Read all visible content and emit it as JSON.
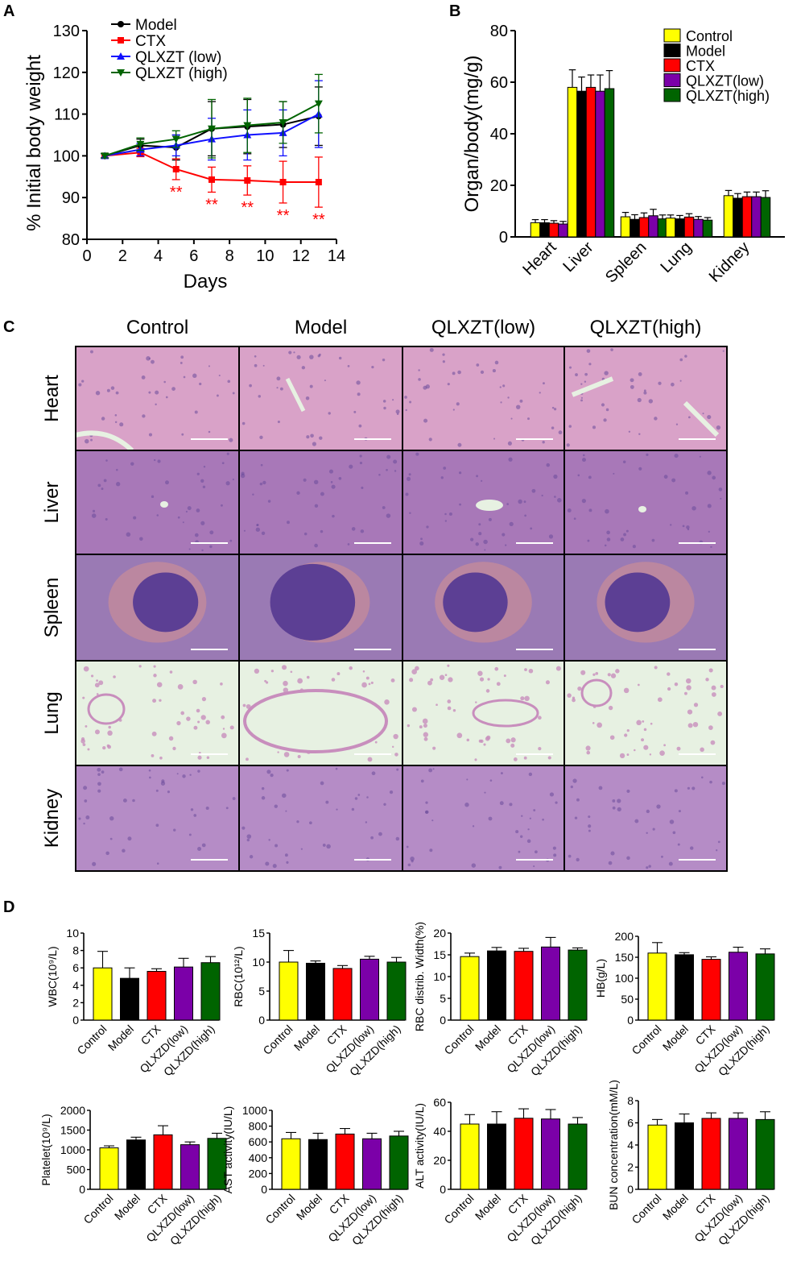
{
  "panel_labels": {
    "A": "A",
    "B": "B",
    "C": "C",
    "D": "D"
  },
  "colors": {
    "Control": "#FFFF00",
    "Model": "#000000",
    "CTX": "#FF0000",
    "low": "#7B00A8",
    "high": "#006400",
    "blue": "#1010FF",
    "tissue": "#B07AB8",
    "lumen": "#E8F2E0"
  },
  "chart_data": [
    {
      "id": "A",
      "type": "line",
      "xlabel": "Days",
      "ylabel": "% Initial body weight",
      "xlim": [
        0,
        14
      ],
      "ylim": [
        80,
        130
      ],
      "xticks": [
        "0",
        "2",
        "4",
        "6",
        "8",
        "10",
        "12",
        "14"
      ],
      "yticks": [
        "80",
        "90",
        "100",
        "110",
        "120",
        "130"
      ],
      "grid": false,
      "legend": "top-left",
      "series": [
        {
          "name": "Model",
          "color": "#000000",
          "marker": "circle",
          "x": [
            1,
            3,
            5,
            7,
            9,
            11,
            13
          ],
          "y": [
            100,
            102.5,
            102,
            106.5,
            107,
            107.5,
            109.5
          ],
          "err": [
            0.5,
            1.5,
            3,
            6.5,
            6.5,
            5.5,
            7
          ]
        },
        {
          "name": "CTX",
          "color": "#FF0000",
          "marker": "square",
          "x": [
            1,
            3,
            5,
            7,
            9,
            11,
            13
          ],
          "y": [
            100,
            100.8,
            96.8,
            94.3,
            94.1,
            93.7,
            93.7
          ],
          "err": [
            0.5,
            1,
            2.5,
            3,
            3.5,
            5,
            6
          ]
        },
        {
          "name": "QLXZT (low)",
          "color": "#1010FF",
          "marker": "triangle-up",
          "x": [
            1,
            3,
            5,
            7,
            9,
            11,
            13
          ],
          "y": [
            100,
            101.5,
            102.5,
            104,
            105,
            105.5,
            110
          ],
          "err": [
            0.5,
            1.5,
            2.5,
            5,
            6,
            5.5,
            8
          ]
        },
        {
          "name": "QLXZT (high)",
          "color": "#006400",
          "marker": "triangle-down",
          "x": [
            1,
            3,
            5,
            7,
            9,
            11,
            13
          ],
          "y": [
            100,
            102.8,
            104,
            106.5,
            107.3,
            108,
            112.5
          ],
          "err": [
            0.5,
            1.5,
            2,
            7,
            6.5,
            5,
            7
          ]
        }
      ],
      "annotations": [
        {
          "x": 5,
          "text": "**"
        },
        {
          "x": 7,
          "text": "**"
        },
        {
          "x": 9,
          "text": "**"
        },
        {
          "x": 11,
          "text": "**"
        },
        {
          "x": 13,
          "text": "**"
        }
      ]
    },
    {
      "id": "B",
      "type": "bar",
      "ylabel": "Organ/body(mg/g)",
      "ylim": [
        0,
        80
      ],
      "yticks": [
        "0",
        "20",
        "40",
        "60",
        "80"
      ],
      "categories": [
        "Heart",
        "Liver",
        "Spleen",
        "Lung",
        "Kidney"
      ],
      "legend": "top-right",
      "series": [
        {
          "name": "Control",
          "color": "#FFFF00",
          "values": [
            5.5,
            58,
            7.8,
            7.3,
            16
          ],
          "err": [
            1.2,
            6.8,
            1.7,
            1.2,
            2
          ]
        },
        {
          "name": "Model",
          "color": "#000000",
          "values": [
            5.5,
            56.5,
            6.8,
            7,
            15
          ],
          "err": [
            1.2,
            5.5,
            1.8,
            1.3,
            1.8
          ]
        },
        {
          "name": "CTX",
          "color": "#FF0000",
          "values": [
            5.3,
            58,
            7.5,
            7.7,
            15.6
          ],
          "err": [
            1,
            4.8,
            1.8,
            1.3,
            1.8
          ]
        },
        {
          "name": "QLXZT(low)",
          "color": "#7B00A8",
          "values": [
            5,
            56.5,
            8.2,
            6.8,
            15.6
          ],
          "err": [
            1,
            6.3,
            2.5,
            1.1,
            1.8
          ]
        },
        {
          "name": "QLXZT(high)",
          "color": "#006400",
          "values": [
            5.5,
            57.5,
            7,
            6.5,
            15.3
          ],
          "err": [
            1.5,
            7,
            1.5,
            1,
            2.6
          ]
        }
      ]
    },
    {
      "id": "D1",
      "type": "bar",
      "ylabel": "WBC(10⁹/L)",
      "ylim": [
        0,
        10
      ],
      "yticks": [
        "0",
        "2",
        "4",
        "6",
        "8",
        "10"
      ],
      "categories": [
        "Control",
        "Model",
        "CTX",
        "QLXZD(low)",
        "QLXZD(high)"
      ],
      "values": [
        6,
        4.8,
        5.6,
        6.1,
        6.6
      ],
      "err": [
        1.9,
        1.2,
        0.3,
        1,
        0.7
      ]
    },
    {
      "id": "D2",
      "type": "bar",
      "ylabel": "RBC(10¹²/L)",
      "ylim": [
        0,
        15
      ],
      "yticks": [
        "0",
        "5",
        "10",
        "15"
      ],
      "categories": [
        "Control",
        "Model",
        "CTX",
        "QLXZD(low)",
        "QLXZD(high)"
      ],
      "values": [
        10,
        9.8,
        8.9,
        10.5,
        10
      ],
      "err": [
        2,
        0.4,
        0.5,
        0.5,
        0.8
      ]
    },
    {
      "id": "D3",
      "type": "bar",
      "ylabel": "RBC distrib. Width(%)",
      "ylim": [
        0,
        20
      ],
      "yticks": [
        "0",
        "5",
        "10",
        "15",
        "20"
      ],
      "categories": [
        "Control",
        "Model",
        "CTX",
        "QLXZD(low)",
        "QLXZD(high)"
      ],
      "values": [
        14.6,
        15.9,
        15.8,
        16.8,
        16.1
      ],
      "err": [
        0.8,
        0.8,
        0.7,
        2.2,
        0.5
      ]
    },
    {
      "id": "D4",
      "type": "bar",
      "ylabel": "HB(g/L)",
      "ylim": [
        0,
        200
      ],
      "yticks": [
        "0",
        "50",
        "100",
        "150",
        "200"
      ],
      "categories": [
        "Control",
        "Model",
        "CTX",
        "QLXZD(low)",
        "QLXZD(high)"
      ],
      "values": [
        160,
        156,
        145,
        162,
        158
      ],
      "err": [
        25,
        5,
        6,
        12,
        12
      ]
    },
    {
      "id": "D5",
      "type": "bar",
      "ylabel": "Platelet(10⁹/L)",
      "ylim": [
        0,
        2000
      ],
      "yticks": [
        "0",
        "500",
        "1000",
        "1500",
        "2000"
      ],
      "categories": [
        "Control",
        "Model",
        "CTX",
        "QLXZD(low)",
        "QLXZD(high)"
      ],
      "values": [
        1050,
        1250,
        1380,
        1130,
        1290
      ],
      "err": [
        50,
        70,
        230,
        70,
        130
      ]
    },
    {
      "id": "D6",
      "type": "bar",
      "ylabel": "AST activity(IU/L)",
      "ylim": [
        0,
        1000
      ],
      "yticks": [
        "0",
        "200",
        "400",
        "600",
        "800",
        "1000"
      ],
      "categories": [
        "Control",
        "Model",
        "CTX",
        "QLXZD(low)",
        "QLXZD(high)"
      ],
      "values": [
        640,
        630,
        700,
        640,
        675
      ],
      "err": [
        80,
        80,
        70,
        70,
        60
      ]
    },
    {
      "id": "D7",
      "type": "bar",
      "ylabel": "ALT activity(IU/L)",
      "ylim": [
        0,
        60
      ],
      "yticks": [
        "0",
        "20",
        "40",
        "60"
      ],
      "categories": [
        "Control",
        "Model",
        "CTX",
        "QLXZD(low)",
        "QLXZD(high)"
      ],
      "values": [
        45,
        45,
        49,
        48.5,
        45
      ],
      "err": [
        6.5,
        8.5,
        6.5,
        6.5,
        4.5
      ]
    },
    {
      "id": "D8",
      "type": "bar",
      "ylabel": "BUN concentration(mM/L)",
      "ylim": [
        0,
        8
      ],
      "yticks": [
        "0",
        "2",
        "4",
        "6",
        "8"
      ],
      "categories": [
        "Control",
        "Model",
        "CTX",
        "QLXZD(low)",
        "QLXZD(high)"
      ],
      "values": [
        5.8,
        6,
        6.4,
        6.4,
        6.3
      ],
      "err": [
        0.5,
        0.8,
        0.5,
        0.5,
        0.7
      ]
    }
  ],
  "histology": {
    "columns": [
      "Control",
      "Model",
      "QLXZT(low)",
      "QLXZT(high)"
    ],
    "rows": [
      "Heart",
      "Liver",
      "Spleen",
      "Lung",
      "Kidney"
    ]
  }
}
